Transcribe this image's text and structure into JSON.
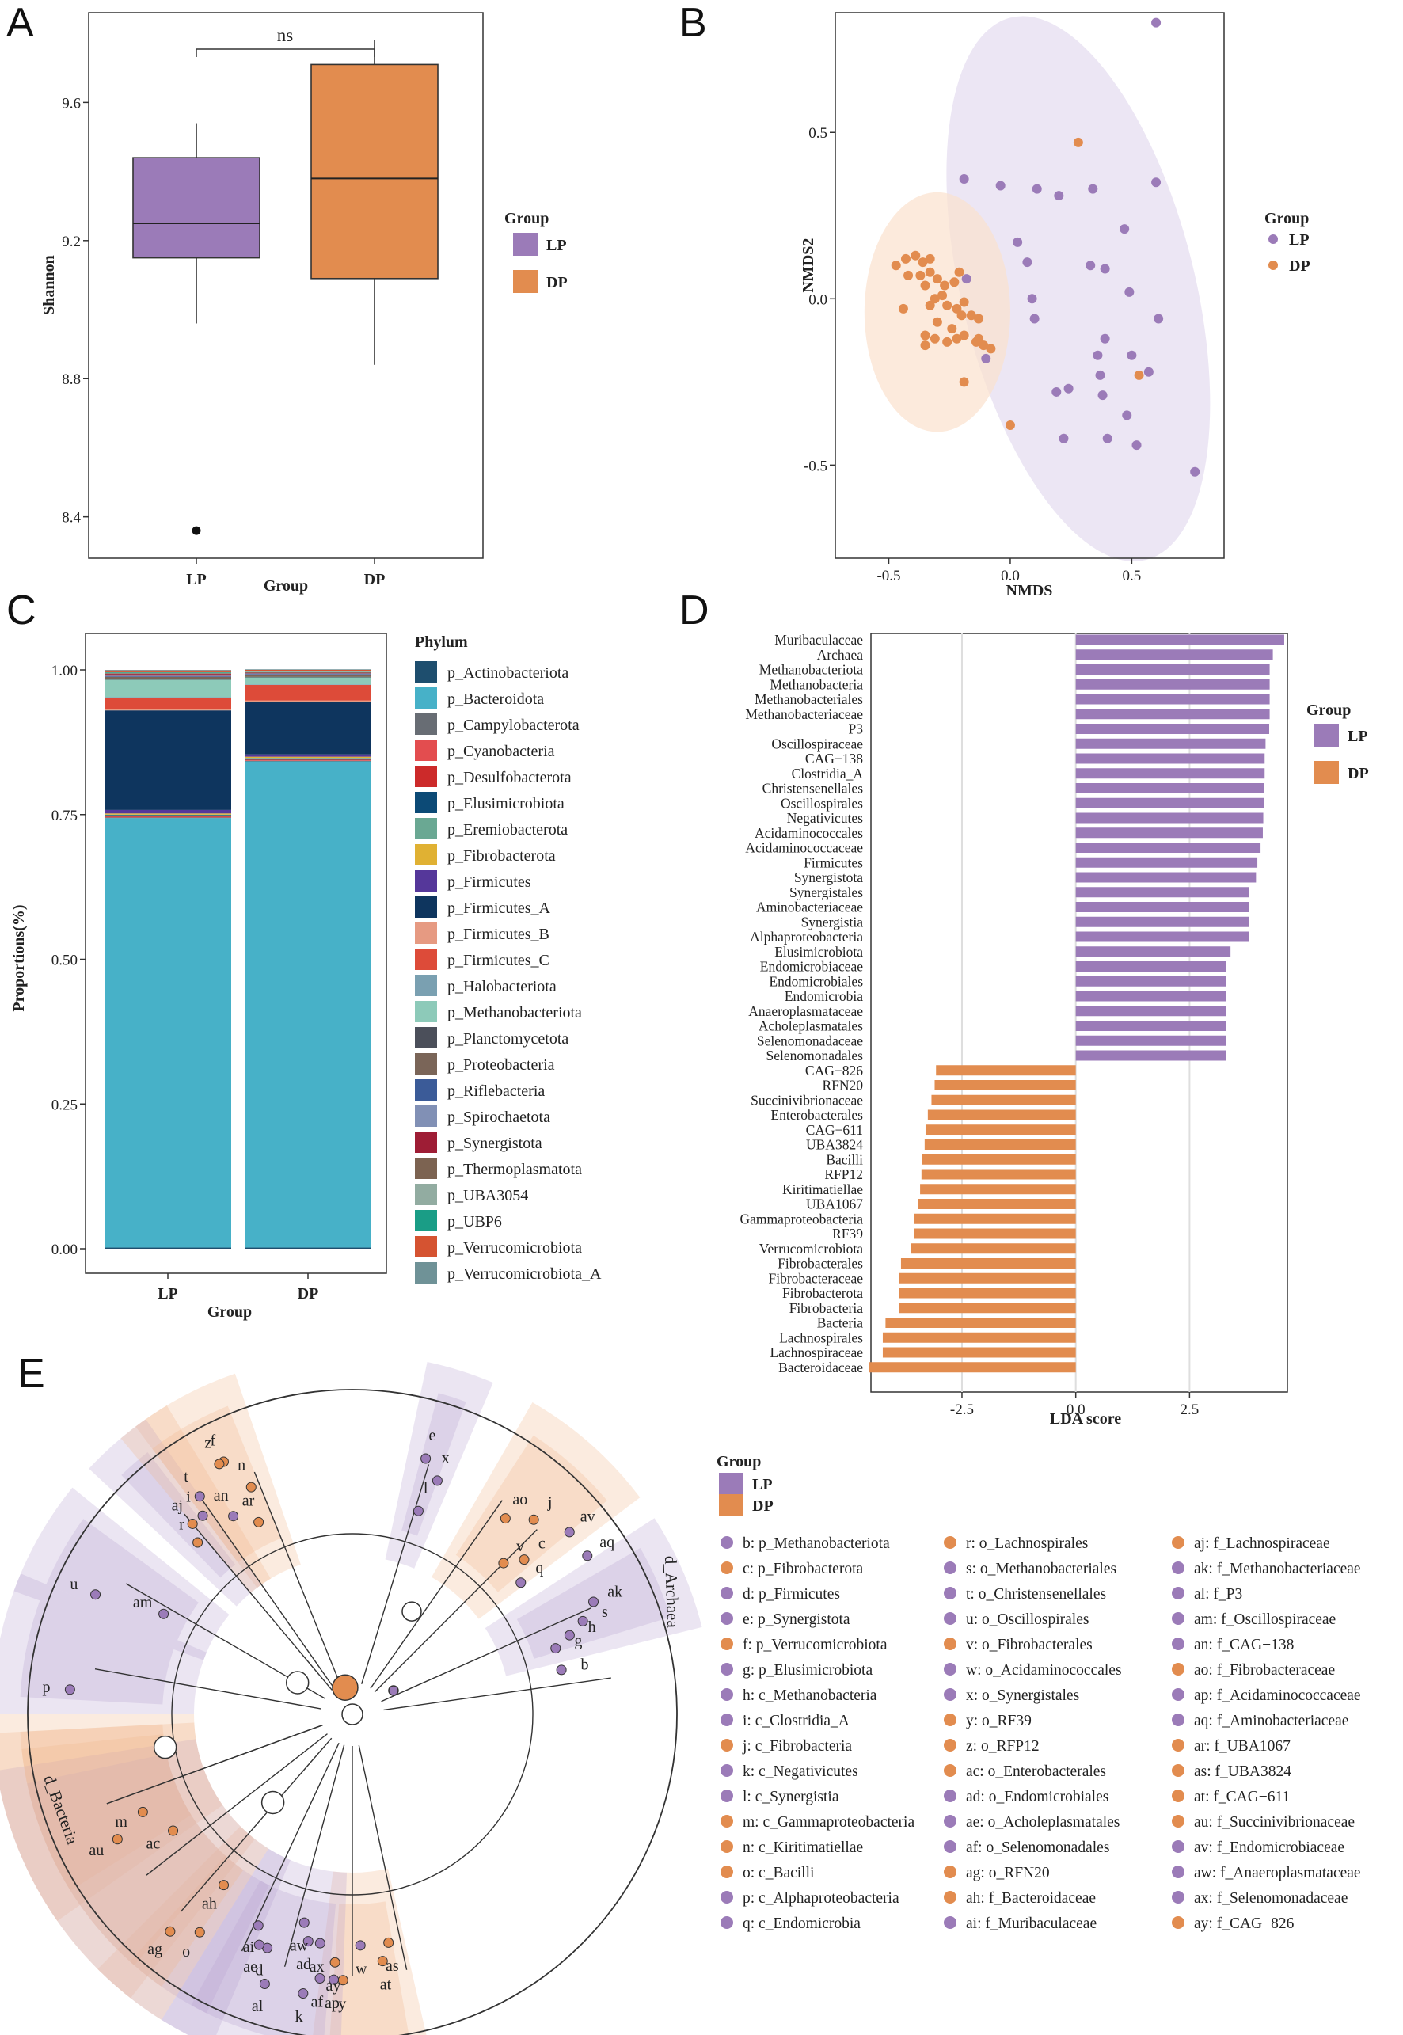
{
  "panel_labels": [
    "A",
    "B",
    "C",
    "D",
    "E"
  ],
  "colors": {
    "lp": "#9b7bb8",
    "dp": "#e28c4f"
  },
  "chart_data": [
    {
      "panel": "A",
      "type": "box",
      "title": "",
      "xlabel": "Group",
      "ylabel": "Shannon",
      "categories": [
        "LP",
        "DP"
      ],
      "series": [
        {
          "name": "LP",
          "min": 8.96,
          "q1": 9.15,
          "median": 9.25,
          "q3": 9.44,
          "max": 9.54,
          "outliers": [
            8.36
          ]
        },
        {
          "name": "DP",
          "min": 8.84,
          "q1": 9.09,
          "median": 9.38,
          "q3": 9.71,
          "max": 9.78,
          "outliers": []
        }
      ],
      "ylim": [
        8.28,
        9.86
      ],
      "yticks": [
        "8.4",
        "8.8",
        "9.2",
        "9.6"
      ],
      "annotation": "ns",
      "legend": {
        "title": "Group",
        "entries": [
          "LP",
          "DP"
        ],
        "placement": "right"
      }
    },
    {
      "panel": "B",
      "type": "scatter",
      "xlabel": "NMDS",
      "ylabel": "NMDS2",
      "xlim": [
        -0.72,
        0.88
      ],
      "ylim": [
        -0.78,
        0.86
      ],
      "xticks": [
        "-0.5",
        "0.0",
        "0.5"
      ],
      "yticks": [
        "-0.5",
        "0.0",
        "0.5"
      ],
      "legend": {
        "title": "Group",
        "entries": [
          "LP",
          "DP"
        ],
        "placement": "right"
      },
      "ellipses": [
        {
          "group": "LP",
          "cx": 0.28,
          "cy": 0.03,
          "rx": 0.48,
          "ry": 0.84,
          "angle": -14
        },
        {
          "group": "DP",
          "cx": -0.3,
          "cy": -0.04,
          "rx": 0.3,
          "ry": 0.36,
          "angle": 0
        }
      ],
      "series": [
        {
          "name": "LP",
          "points": [
            [
              0.6,
              0.83
            ],
            [
              0.6,
              0.35
            ],
            [
              -0.19,
              0.36
            ],
            [
              -0.04,
              0.34
            ],
            [
              0.11,
              0.33
            ],
            [
              0.2,
              0.31
            ],
            [
              0.34,
              0.33
            ],
            [
              0.03,
              0.17
            ],
            [
              0.07,
              0.11
            ],
            [
              0.47,
              0.21
            ],
            [
              0.33,
              0.1
            ],
            [
              0.39,
              0.09
            ],
            [
              -0.18,
              0.06
            ],
            [
              0.09,
              0.0
            ],
            [
              0.49,
              0.02
            ],
            [
              0.1,
              -0.06
            ],
            [
              0.61,
              -0.06
            ],
            [
              0.39,
              -0.12
            ],
            [
              -0.1,
              -0.18
            ],
            [
              0.36,
              -0.17
            ],
            [
              0.5,
              -0.17
            ],
            [
              0.37,
              -0.23
            ],
            [
              0.57,
              -0.22
            ],
            [
              0.38,
              -0.29
            ],
            [
              0.24,
              -0.27
            ],
            [
              0.19,
              -0.28
            ],
            [
              0.48,
              -0.35
            ],
            [
              0.22,
              -0.42
            ],
            [
              0.4,
              -0.42
            ],
            [
              0.52,
              -0.44
            ],
            [
              0.76,
              -0.52
            ]
          ]
        },
        {
          "name": "DP",
          "points": [
            [
              0.28,
              0.47
            ],
            [
              -0.47,
              0.1
            ],
            [
              -0.43,
              0.12
            ],
            [
              -0.39,
              0.13
            ],
            [
              -0.36,
              0.11
            ],
            [
              -0.33,
              0.12
            ],
            [
              -0.21,
              0.08
            ],
            [
              -0.42,
              0.07
            ],
            [
              -0.37,
              0.07
            ],
            [
              -0.33,
              0.08
            ],
            [
              -0.3,
              0.06
            ],
            [
              -0.23,
              0.05
            ],
            [
              -0.27,
              0.04
            ],
            [
              -0.35,
              0.04
            ],
            [
              -0.28,
              0.01
            ],
            [
              -0.31,
              0.0
            ],
            [
              -0.33,
              -0.02
            ],
            [
              -0.19,
              -0.01
            ],
            [
              -0.26,
              -0.02
            ],
            [
              -0.22,
              -0.03
            ],
            [
              -0.44,
              -0.03
            ],
            [
              -0.2,
              -0.05
            ],
            [
              -0.3,
              -0.07
            ],
            [
              -0.16,
              -0.05
            ],
            [
              -0.13,
              -0.06
            ],
            [
              -0.24,
              -0.09
            ],
            [
              -0.19,
              -0.11
            ],
            [
              -0.35,
              -0.11
            ],
            [
              -0.31,
              -0.12
            ],
            [
              -0.22,
              -0.12
            ],
            [
              -0.26,
              -0.13
            ],
            [
              -0.14,
              -0.13
            ],
            [
              -0.11,
              -0.14
            ],
            [
              -0.08,
              -0.15
            ],
            [
              -0.35,
              -0.14
            ],
            [
              -0.13,
              -0.12
            ],
            [
              -0.19,
              -0.25
            ],
            [
              0.53,
              -0.23
            ],
            [
              0.0,
              -0.38
            ]
          ]
        }
      ]
    },
    {
      "panel": "C",
      "type": "bar",
      "stacked": true,
      "xlabel": "Group",
      "ylabel": "Proportions(%)",
      "categories": [
        "LP",
        "DP"
      ],
      "ylim": [
        0,
        1
      ],
      "yticks": [
        "0.00",
        "0.25",
        "0.50",
        "0.75",
        "1.00"
      ],
      "legend": {
        "title": "Phylum",
        "placement": "right"
      },
      "series": [
        {
          "name": "p_Actinobacteriota",
          "color": "#1e4e6e",
          "values": [
            0.002,
            0.002
          ]
        },
        {
          "name": "p_Bacteroidota",
          "color": "#47b1c8",
          "values": [
            0.742,
            0.84
          ]
        },
        {
          "name": "p_Campylobacterota",
          "color": "#686d74",
          "values": [
            0.001,
            0.001
          ]
        },
        {
          "name": "p_Cyanobacteria",
          "color": "#e34d4f",
          "values": [
            0.001,
            0.001
          ]
        },
        {
          "name": "p_Desulfobacterota",
          "color": "#cc2a2a",
          "values": [
            0.001,
            0.001
          ]
        },
        {
          "name": "p_Elusimicrobiota",
          "color": "#0c4a76",
          "values": [
            0.002,
            0.002
          ]
        },
        {
          "name": "p_Eremiobacterota",
          "color": "#6aa893",
          "values": [
            0.001,
            0.001
          ]
        },
        {
          "name": "p_Fibrobacterota",
          "color": "#e0b133",
          "values": [
            0.002,
            0.002
          ]
        },
        {
          "name": "p_Firmicutes",
          "color": "#55379a",
          "values": [
            0.006,
            0.004
          ]
        },
        {
          "name": "p_Firmicutes_A",
          "color": "#0e355e",
          "values": [
            0.172,
            0.091
          ]
        },
        {
          "name": "p_Firmicutes_B",
          "color": "#e69a82",
          "values": [
            0.002,
            0.002
          ]
        },
        {
          "name": "p_Firmicutes_C",
          "color": "#dd4b39",
          "values": [
            0.02,
            0.027
          ]
        },
        {
          "name": "p_Halobacteriota",
          "color": "#7aa0b1",
          "values": [
            0.001,
            0.001
          ]
        },
        {
          "name": "p_Methanobacteriota",
          "color": "#8dcab9",
          "values": [
            0.03,
            0.012
          ]
        },
        {
          "name": "p_Planctomycetota",
          "color": "#4b4f5a",
          "values": [
            0.001,
            0.001
          ]
        },
        {
          "name": "p_Proteobacteria",
          "color": "#7a6558",
          "values": [
            0.004,
            0.004
          ]
        },
        {
          "name": "p_Riflebacteria",
          "color": "#3b5b98",
          "values": [
            0.001,
            0.001
          ]
        },
        {
          "name": "p_Spirochaetota",
          "color": "#8190b5",
          "values": [
            0.001,
            0.001
          ]
        },
        {
          "name": "p_Synergistota",
          "color": "#9e1d35",
          "values": [
            0.003,
            0.001
          ]
        },
        {
          "name": "p_Thermoplasmatota",
          "color": "#7c6351",
          "values": [
            0.001,
            0.001
          ]
        },
        {
          "name": "p_UBA3054",
          "color": "#92aca1",
          "values": [
            0.001,
            0.001
          ]
        },
        {
          "name": "p_UBP6",
          "color": "#1a9d86",
          "values": [
            0.001,
            0.001
          ]
        },
        {
          "name": "p_Verrucomicrobiota",
          "color": "#d55331",
          "values": [
            0.003,
            0.002
          ]
        },
        {
          "name": "p_Verrucomicrobiota_A",
          "color": "#6f9297",
          "values": [
            0.001,
            0.001
          ]
        }
      ]
    },
    {
      "panel": "D",
      "type": "bar",
      "orientation": "horizontal",
      "xlabel": "LDA score",
      "xlim": [
        -4.5,
        4.65
      ],
      "xticks": [
        "-2.5",
        "0.0",
        "2.5"
      ],
      "legend": {
        "title": "Group",
        "entries": [
          "LP",
          "DP"
        ],
        "placement": "right"
      },
      "categories": [
        "Muribaculaceae",
        "Archaea",
        "Methanobacteriota",
        "Methanobacteria",
        "Methanobacteriales",
        "Methanobacteriaceae",
        "P3",
        "Oscillospiraceae",
        "CAG−138",
        "Clostridia_A",
        "Christensenellales",
        "Oscillospirales",
        "Negativicutes",
        "Acidaminococcales",
        "Acidaminococcaceae",
        "Firmicutes",
        "Synergistota",
        "Synergistales",
        "Aminobacteriaceae",
        "Synergistia",
        "Alphaproteobacteria",
        "Elusimicrobiota",
        "Endomicrobiaceae",
        "Endomicrobiales",
        "Endomicrobia",
        "Anaeroplasmataceae",
        "Acholeplasmatales",
        "Selenomonadaceae",
        "Selenomonadales",
        "CAG−826",
        "RFN20",
        "Succinivibrionaceae",
        "Enterobacterales",
        "CAG−611",
        "UBA3824",
        "Bacilli",
        "RFP12",
        "Kiritimatiellae",
        "UBA1067",
        "Gammaproteobacteria",
        "RF39",
        "Verrucomicrobiota",
        "Fibrobacterales",
        "Fibrobacteraceae",
        "Fibrobacterota",
        "Fibrobacteria",
        "Bacteria",
        "Lachnospirales",
        "Lachnospiraceae",
        "Bacteroidaceae"
      ],
      "values": [
        4.58,
        4.33,
        4.26,
        4.26,
        4.26,
        4.26,
        4.25,
        4.17,
        4.15,
        4.15,
        4.13,
        4.13,
        4.12,
        4.11,
        4.06,
        3.99,
        3.96,
        3.81,
        3.81,
        3.81,
        3.81,
        3.4,
        3.31,
        3.31,
        3.31,
        3.31,
        3.31,
        3.31,
        3.31,
        -3.07,
        -3.1,
        -3.17,
        -3.25,
        -3.3,
        -3.32,
        -3.37,
        -3.39,
        -3.42,
        -3.46,
        -3.55,
        -3.55,
        -3.63,
        -3.84,
        -3.88,
        -3.88,
        -3.88,
        -4.18,
        -4.24,
        -4.24,
        -4.55
      ],
      "groups": [
        "LP",
        "LP",
        "LP",
        "LP",
        "LP",
        "LP",
        "LP",
        "LP",
        "LP",
        "LP",
        "LP",
        "LP",
        "LP",
        "LP",
        "LP",
        "LP",
        "LP",
        "LP",
        "LP",
        "LP",
        "LP",
        "LP",
        "LP",
        "LP",
        "LP",
        "LP",
        "LP",
        "LP",
        "LP",
        "DP",
        "DP",
        "DP",
        "DP",
        "DP",
        "DP",
        "DP",
        "DP",
        "DP",
        "DP",
        "DP",
        "DP",
        "DP",
        "DP",
        "DP",
        "DP",
        "DP",
        "DP",
        "DP",
        "DP",
        "DP"
      ]
    },
    {
      "panel": "E",
      "type": "cladogram",
      "legend": {
        "title": "Group",
        "entries": [
          "LP",
          "DP"
        ]
      },
      "domain_labels": [
        "d_Archaea",
        "d_Bacteria"
      ],
      "node_labels": [
        "b",
        "c",
        "d",
        "e",
        "f",
        "g",
        "h",
        "i",
        "j",
        "k",
        "l",
        "m",
        "n",
        "o",
        "p",
        "q",
        "r",
        "s",
        "t",
        "u",
        "v",
        "w",
        "x",
        "y",
        "z",
        "ac",
        "ad",
        "ae",
        "af",
        "ag",
        "ah",
        "ai",
        "aj",
        "ak",
        "al",
        "am",
        "an",
        "ao",
        "ap",
        "aq",
        "ar",
        "as",
        "at",
        "au",
        "av",
        "aw",
        "ax",
        "ay"
      ],
      "node_groups": [
        "LP",
        "DP",
        "LP",
        "LP",
        "DP",
        "LP",
        "LP",
        "LP",
        "DP",
        "LP",
        "LP",
        "DP",
        "DP",
        "DP",
        "LP",
        "LP",
        "DP",
        "LP",
        "LP",
        "LP",
        "DP",
        "LP",
        "LP",
        "DP",
        "DP",
        "DP",
        "LP",
        "LP",
        "LP",
        "DP",
        "DP",
        "LP",
        "DP",
        "LP",
        "LP",
        "LP",
        "LP",
        "DP",
        "LP",
        "LP",
        "DP",
        "DP",
        "DP",
        "DP",
        "LP",
        "LP",
        "LP",
        "DP"
      ],
      "taxa": [
        "b: p_Methanobacteriota",
        "c: p_Fibrobacterota",
        "d: p_Firmicutes",
        "e: p_Synergistota",
        "f: p_Verrucomicrobiota",
        "g: p_Elusimicrobiota",
        "h: c_Methanobacteria",
        "i: c_Clostridia_A",
        "j: c_Fibrobacteria",
        "k: c_Negativicutes",
        "l: c_Synergistia",
        "m: c_Gammaproteobacteria",
        "n: c_Kiritimatiellae",
        "o: c_Bacilli",
        "p: c_Alphaproteobacteria",
        "q: c_Endomicrobia",
        "r: o_Lachnospirales",
        "s: o_Methanobacteriales",
        "t: o_Christensenellales",
        "u: o_Oscillospirales",
        "v: o_Fibrobacterales",
        "w: o_Acidaminococcales",
        "x: o_Synergistales",
        "y: o_RF39",
        "z: o_RFP12",
        "ac: o_Enterobacterales",
        "ad: o_Endomicrobiales",
        "ae: o_Acholeplasmatales",
        "af: o_Selenomonadales",
        "ag: o_RFN20",
        "ah: f_Bacteroidaceae",
        "ai: f_Muribaculaceae",
        "aj: f_Lachnospiraceae",
        "ak: f_Methanobacteriaceae",
        "al: f_P3",
        "am: f_Oscillospiraceae",
        "an: f_CAG−138",
        "ao: f_Fibrobacteraceae",
        "ap: f_Acidaminococcaceae",
        "aq: f_Aminobacteriaceae",
        "ar: f_UBA1067",
        "as: f_UBA3824",
        "at: f_CAG−611",
        "au: f_Succinivibrionaceae",
        "av: f_Endomicrobiaceae",
        "aw: f_Anaeroplasmataceae",
        "ax: f_Selenomonadaceae",
        "ay: f_CAG−826"
      ]
    }
  ]
}
